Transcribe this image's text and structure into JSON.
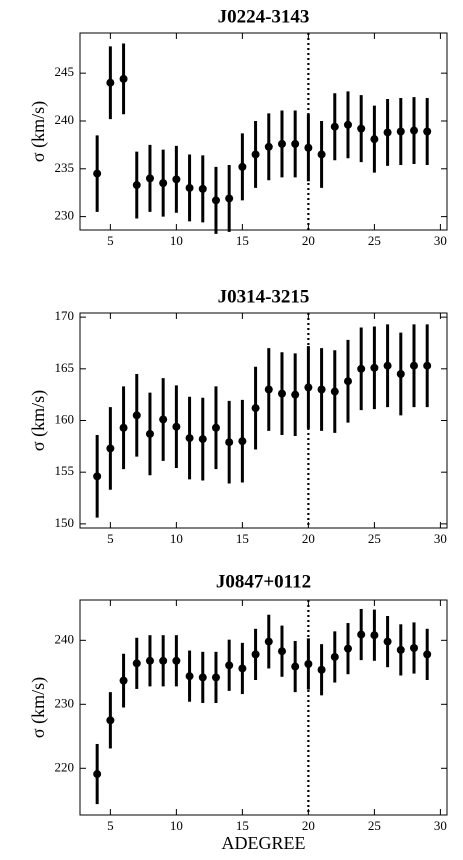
{
  "chart_data": [
    {
      "type": "scatter",
      "title": "J0224-3143",
      "y_label": "σ (km/s)",
      "color": "#000000",
      "x": [
        4,
        5,
        6,
        7,
        8,
        9,
        10,
        11,
        12,
        13,
        14,
        15,
        16,
        17,
        18,
        19,
        20,
        21,
        22,
        23,
        24,
        25,
        26,
        27,
        28,
        29
      ],
      "series": [
        {
          "values": [
            234.5,
            244,
            244.4,
            233.3,
            234,
            233.5,
            233.9,
            233,
            232.9,
            231.7,
            231.9,
            235.2,
            236.5,
            237.3,
            237.6,
            237.6,
            237.2,
            236.5,
            239.4,
            239.6,
            239.2,
            238.1,
            238.8,
            238.9,
            239,
            238.9
          ],
          "errors": [
            4,
            3.8,
            3.7,
            3.5,
            3.5,
            3.5,
            3.5,
            3.5,
            3.5,
            3.5,
            3.5,
            3.5,
            3.5,
            3.5,
            3.5,
            3.5,
            3.5,
            3.5,
            3.5,
            3.5,
            3.5,
            3.5,
            3.5,
            3.5,
            3.5,
            3.5
          ]
        }
      ],
      "xlim": [
        2.7,
        30.5
      ],
      "ylim": [
        228.6,
        249.2
      ],
      "xticks": [
        5,
        10,
        15,
        20,
        25,
        30
      ],
      "yticks": [
        230,
        235,
        240,
        245
      ],
      "vline": 20
    },
    {
      "type": "scatter",
      "title": "J0314-3215",
      "y_label": "σ (km/s)",
      "color": "#000000",
      "x": [
        4,
        5,
        6,
        7,
        8,
        9,
        10,
        11,
        12,
        13,
        14,
        15,
        16,
        17,
        18,
        19,
        20,
        21,
        22,
        23,
        24,
        25,
        26,
        27,
        28,
        29
      ],
      "series": [
        {
          "values": [
            154.6,
            157.3,
            159.3,
            160.5,
            158.7,
            160.1,
            159.4,
            158.3,
            158.2,
            159.3,
            157.9,
            158,
            161.2,
            163,
            162.6,
            162.5,
            163.2,
            163,
            162.8,
            163.8,
            165,
            165.1,
            165.3,
            164.5,
            165.3,
            165.3
          ],
          "errors": [
            4,
            4,
            4,
            4,
            4,
            4,
            4,
            4,
            4,
            4,
            4,
            4,
            4,
            4,
            4,
            4,
            4,
            4,
            4,
            4,
            4,
            4,
            4,
            4,
            4,
            4
          ]
        }
      ],
      "xlim": [
        2.7,
        30.5
      ],
      "ylim": [
        149.6,
        170.4
      ],
      "xticks": [
        5,
        10,
        15,
        20,
        25,
        30
      ],
      "yticks": [
        150,
        155,
        160,
        165,
        170
      ],
      "vline": 20
    },
    {
      "type": "scatter",
      "title": "J0847+0112",
      "y_label": "σ (km/s)",
      "x_label": "ADEGREE",
      "color": "#000000",
      "x": [
        4,
        5,
        6,
        7,
        8,
        9,
        10,
        11,
        12,
        13,
        14,
        15,
        16,
        17,
        18,
        19,
        20,
        21,
        22,
        23,
        24,
        25,
        26,
        27,
        28,
        29
      ],
      "series": [
        {
          "values": [
            219.1,
            227.5,
            233.7,
            236.4,
            236.8,
            236.8,
            236.8,
            234.4,
            234.2,
            234.2,
            236.1,
            235.6,
            237.8,
            239.8,
            238.3,
            235.9,
            236.3,
            235.4,
            237.4,
            238.7,
            240.9,
            240.8,
            239.8,
            238.5,
            238.8,
            237.8
          ],
          "errors": [
            4.7,
            4.4,
            4.2,
            4,
            4,
            4,
            4,
            4,
            4,
            4,
            4,
            4,
            4,
            4.2,
            4,
            4,
            4,
            4,
            4,
            4,
            4,
            4,
            4,
            4,
            4,
            4
          ]
        }
      ],
      "xlim": [
        2.7,
        30.5
      ],
      "ylim": [
        212.7,
        246.3
      ],
      "xticks": [
        5,
        10,
        15,
        20,
        25,
        30
      ],
      "yticks": [
        220,
        230,
        240
      ],
      "vline": 20
    }
  ]
}
